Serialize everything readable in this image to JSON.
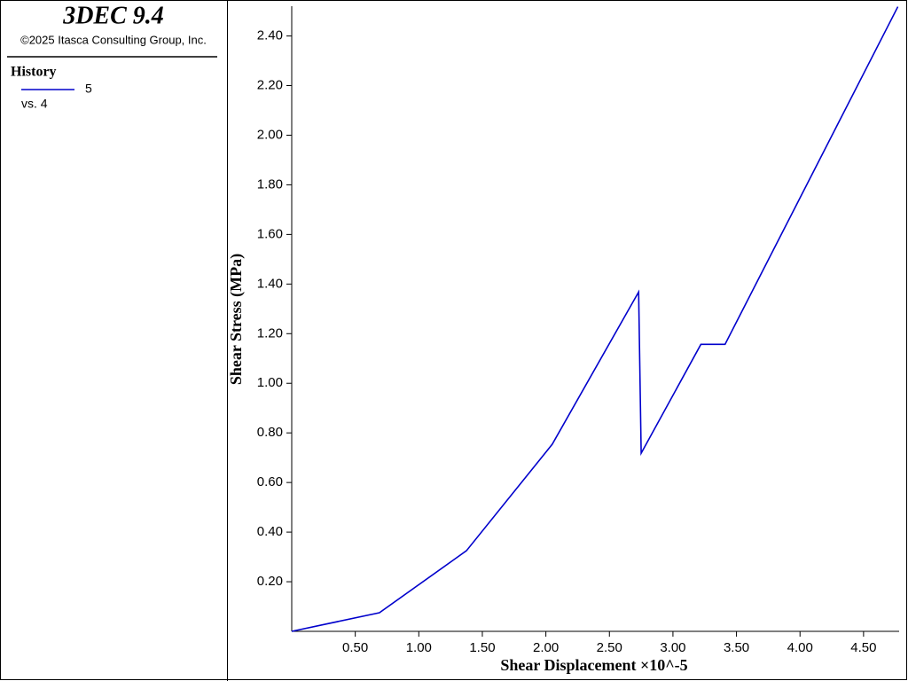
{
  "header": {
    "title": "3DEC 9.4",
    "copyright": "©2025 Itasca Consulting Group, Inc."
  },
  "chart_data": {
    "type": "line",
    "legend_title": "History",
    "legend_subtitle": "vs. 4",
    "x_label": "Shear Displacement ×10^-5",
    "y_label": "Shear Stress (MPa)",
    "series": [
      {
        "name": "5",
        "color": "#0000cc",
        "x": [
          0,
          0.69,
          1.375,
          2.05,
          2.73,
          2.75,
          3.22,
          3.41,
          4.77
        ],
        "values": [
          0,
          0.075,
          0.325,
          0.754,
          1.368,
          0.718,
          1.157,
          1.157,
          2.518
        ]
      }
    ],
    "xlim": [
      0,
      4.78
    ],
    "ylim": [
      0,
      2.52
    ],
    "xticks": [
      {
        "value": 0.5,
        "label": "0.50"
      },
      {
        "value": 1,
        "label": "1.00"
      },
      {
        "value": 1.5,
        "label": "1.50"
      },
      {
        "value": 2,
        "label": "2.00"
      },
      {
        "value": 2.5,
        "label": "2.50"
      },
      {
        "value": 3,
        "label": "3.00"
      },
      {
        "value": 3.5,
        "label": "3.50"
      },
      {
        "value": 4,
        "label": "4.00"
      },
      {
        "value": 4.5,
        "label": "4.50"
      }
    ],
    "yticks": [
      {
        "value": 0.2,
        "label": "0.20"
      },
      {
        "value": 0.4,
        "label": "0.40"
      },
      {
        "value": 0.6,
        "label": "0.60"
      },
      {
        "value": 0.8,
        "label": "0.80"
      },
      {
        "value": 1,
        "label": "1.00"
      },
      {
        "value": 1.2,
        "label": "1.20"
      },
      {
        "value": 1.4,
        "label": "1.40"
      },
      {
        "value": 1.6,
        "label": "1.60"
      },
      {
        "value": 1.8,
        "label": "1.80"
      },
      {
        "value": 2,
        "label": "2.00"
      },
      {
        "value": 2.2,
        "label": "2.20"
      },
      {
        "value": 2.4,
        "label": "2.40"
      }
    ],
    "grid": false
  }
}
